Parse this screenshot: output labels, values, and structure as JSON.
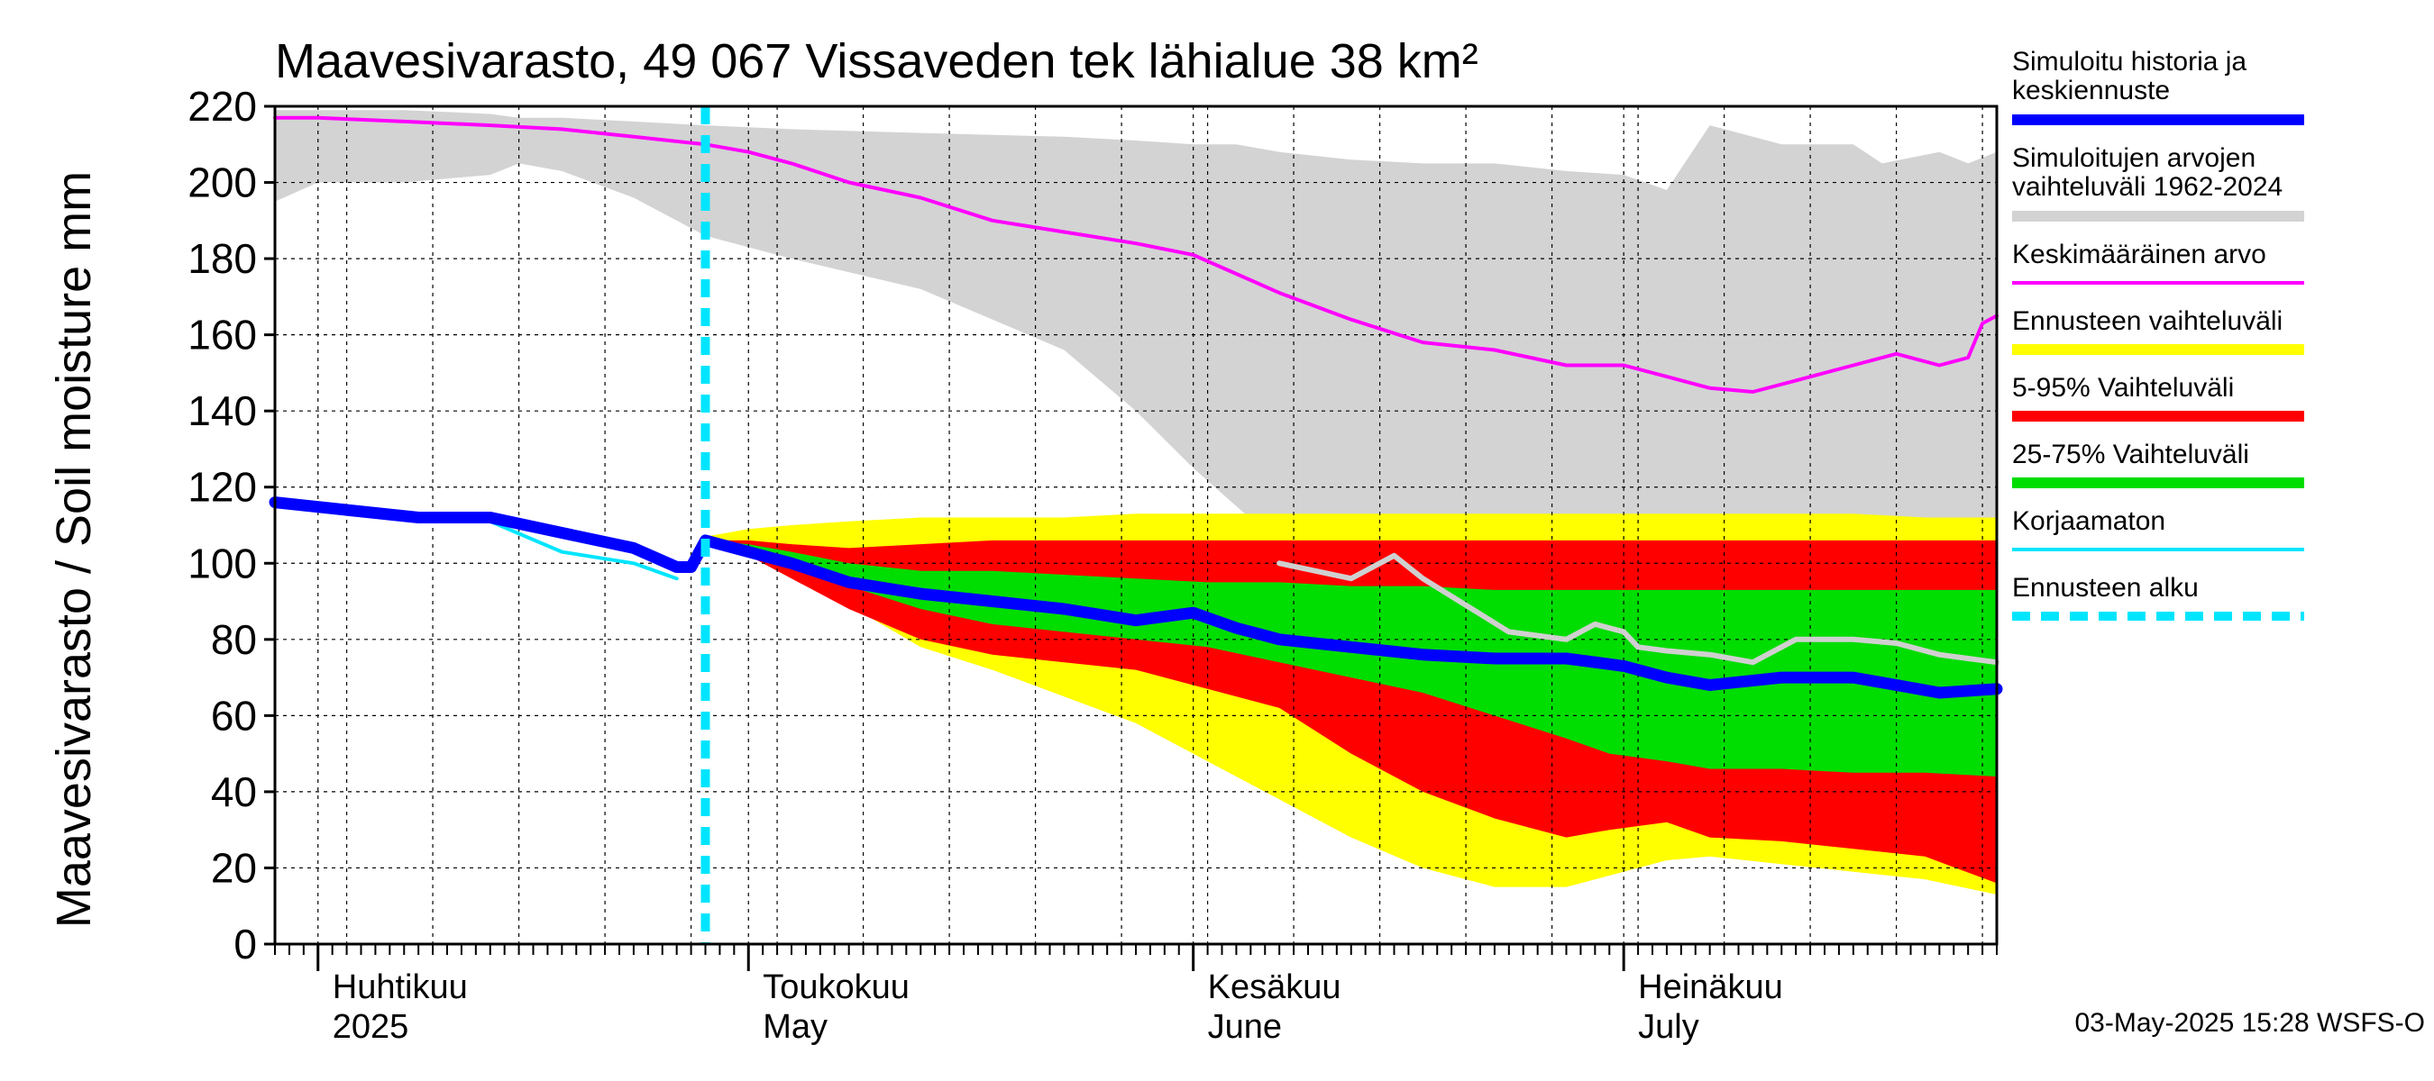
{
  "chart_data": {
    "type": "area",
    "title": "Maavesivarasto, 49 067 Vissaveden tek lähialue 38 km²",
    "ylabel": "Maavesivarasto / Soil moisture   mm",
    "xlabel": "",
    "ylim": [
      0,
      220
    ],
    "yticks": [
      "0",
      "20",
      "40",
      "60",
      "80",
      "100",
      "120",
      "140",
      "160",
      "180",
      "200",
      "220"
    ],
    "xlim_days": [
      0,
      120
    ],
    "x_unit": "days since 2025-03-29",
    "months": [
      {
        "day": 3,
        "line1": "Huhtikuu",
        "line2": "2025"
      },
      {
        "day": 33,
        "line1": "Toukokuu",
        "line2": "May"
      },
      {
        "day": 64,
        "line1": "Kesäkuu",
        "line2": "June"
      },
      {
        "day": 94,
        "line1": "Heinäkuu",
        "line2": "July"
      }
    ],
    "forecast_start_day": 30,
    "series": [
      {
        "name": "hist_range",
        "legend": "Simuloitujen arvojen vaihteluväli 1962-2024",
        "color": "#d3d3d3",
        "x": [
          0,
          3,
          9,
          15,
          17,
          20,
          25,
          30,
          36,
          45,
          55,
          60,
          64,
          67,
          70,
          75,
          80,
          85,
          90,
          94,
          97,
          100,
          105,
          110,
          112,
          116,
          118,
          120
        ],
        "upper": [
          219,
          219,
          219,
          218,
          217,
          217,
          216,
          215,
          214,
          213,
          212,
          211,
          210,
          210,
          208,
          206,
          205,
          205,
          203,
          202,
          198,
          215,
          210,
          210,
          205,
          208,
          205,
          208
        ],
        "lower": [
          195,
          200,
          200,
          202,
          205,
          203,
          196,
          186,
          180,
          172,
          156,
          140,
          125,
          115,
          105,
          105,
          105,
          103,
          102,
          103,
          105,
          108,
          104,
          102,
          103,
          103,
          100,
          102
        ]
      },
      {
        "name": "ens_range",
        "legend": "Ennusteen vaihteluväli",
        "color": "#ffff00",
        "x": [
          30,
          33,
          36,
          40,
          45,
          50,
          55,
          60,
          65,
          70,
          75,
          80,
          85,
          90,
          93,
          97,
          100,
          105,
          110,
          115,
          120
        ],
        "upper": [
          107,
          109,
          110,
          111,
          112,
          112,
          112,
          113,
          113,
          113,
          113,
          113,
          113,
          113,
          113,
          113,
          113,
          113,
          113,
          112,
          112
        ],
        "lower": [
          106,
          103,
          97,
          89,
          78,
          72,
          65,
          58,
          48,
          38,
          28,
          20,
          15,
          15,
          18,
          22,
          23,
          21,
          19,
          17,
          13
        ]
      },
      {
        "name": "p5_95",
        "legend": "5-95% Vaihteluväli",
        "color": "#ff0000",
        "x": [
          30,
          33,
          36,
          40,
          45,
          50,
          55,
          60,
          65,
          70,
          75,
          80,
          85,
          90,
          93,
          97,
          100,
          105,
          110,
          115,
          120
        ],
        "upper": [
          106,
          106,
          105,
          104,
          105,
          106,
          106,
          106,
          106,
          106,
          106,
          106,
          106,
          106,
          106,
          106,
          106,
          106,
          106,
          106,
          106
        ],
        "lower": [
          106,
          102,
          96,
          88,
          80,
          76,
          74,
          72,
          67,
          62,
          50,
          40,
          33,
          28,
          30,
          32,
          28,
          27,
          25,
          23,
          16
        ]
      },
      {
        "name": "p25_75",
        "legend": "25-75% Vaihteluväli",
        "color": "#00dd00",
        "x": [
          30,
          33,
          36,
          40,
          45,
          50,
          55,
          60,
          65,
          70,
          75,
          80,
          85,
          90,
          93,
          97,
          100,
          105,
          110,
          115,
          120
        ],
        "upper": [
          106,
          105,
          103,
          100,
          98,
          98,
          97,
          96,
          95,
          95,
          94,
          94,
          93,
          93,
          93,
          93,
          93,
          93,
          93,
          93,
          93
        ],
        "lower": [
          106,
          104,
          100,
          94,
          88,
          84,
          82,
          80,
          78,
          74,
          70,
          66,
          60,
          54,
          50,
          48,
          46,
          46,
          45,
          45,
          44
        ]
      },
      {
        "name": "mean",
        "legend": "Keskimääräinen arvo",
        "color": "#ff00ff",
        "x": [
          0,
          3,
          9,
          15,
          20,
          25,
          30,
          33,
          36,
          40,
          45,
          50,
          55,
          60,
          64,
          67,
          70,
          75,
          80,
          85,
          90,
          94,
          97,
          100,
          103,
          106,
          110,
          113,
          116,
          118,
          119,
          120
        ],
        "y": [
          217,
          217,
          216,
          215,
          214,
          212,
          210,
          208,
          205,
          200,
          196,
          190,
          187,
          184,
          181,
          176,
          171,
          164,
          158,
          156,
          152,
          152,
          149,
          146,
          145,
          148,
          152,
          155,
          152,
          154,
          163,
          165
        ]
      },
      {
        "name": "forecast",
        "legend": "Simuloitu historia ja keskiennuste",
        "color": "#0000ff",
        "x": [
          0,
          5,
          10,
          15,
          20,
          25,
          28,
          29,
          30,
          33,
          36,
          40,
          45,
          50,
          55,
          60,
          64,
          67,
          70,
          75,
          80,
          85,
          90,
          94,
          97,
          100,
          105,
          110,
          113,
          116,
          120
        ],
        "y": [
          116,
          114,
          112,
          112,
          108,
          104,
          99,
          99,
          106,
          103,
          100,
          95,
          92,
          90,
          88,
          85,
          87,
          83,
          80,
          78,
          76,
          75,
          75,
          73,
          70,
          68,
          70,
          70,
          68,
          66,
          67
        ]
      },
      {
        "name": "uncorrected",
        "legend": "Korjaamaton",
        "color": "#00e5ff",
        "x": [
          0,
          5,
          10,
          15,
          20,
          25,
          28
        ],
        "y": [
          115,
          113,
          112,
          111,
          103,
          100,
          96
        ]
      },
      {
        "name": "hist_line",
        "legend": "",
        "color": "#d0d0d0",
        "x": [
          70,
          75,
          78,
          80,
          83,
          86,
          90,
          92,
          94,
          95,
          97,
          100,
          103,
          106,
          110,
          113,
          116,
          118,
          120
        ],
        "y": [
          100,
          96,
          102,
          96,
          89,
          82,
          80,
          84,
          82,
          78,
          77,
          76,
          74,
          80,
          80,
          79,
          76,
          75,
          74
        ]
      }
    ]
  },
  "legend": [
    {
      "line1": "Simuloitu historia ja",
      "line2": "keskiennuste",
      "color": "#0000ff",
      "style": "thick"
    },
    {
      "line1": "Simuloitujen arvojen",
      "line2": "vaihteluväli 1962-2024",
      "color": "#d3d3d3",
      "style": "thick"
    },
    {
      "line1": "Keskimääräinen arvo",
      "line2": "",
      "color": "#ff00ff",
      "style": "thin"
    },
    {
      "line1": "Ennusteen vaihteluväli",
      "line2": "",
      "color": "#ffff00",
      "style": "thick"
    },
    {
      "line1": "5-95% Vaihteluväli",
      "line2": "",
      "color": "#ff0000",
      "style": "thick"
    },
    {
      "line1": "25-75% Vaihteluväli",
      "line2": "",
      "color": "#00dd00",
      "style": "thick"
    },
    {
      "line1": "Korjaamaton",
      "line2": "",
      "color": "#00e5ff",
      "style": "thin"
    },
    {
      "line1": "Ennusteen alku",
      "line2": "",
      "color": "#00e5ff",
      "style": "dashed"
    }
  ],
  "footer": "03-May-2025 15:28 WSFS-O"
}
